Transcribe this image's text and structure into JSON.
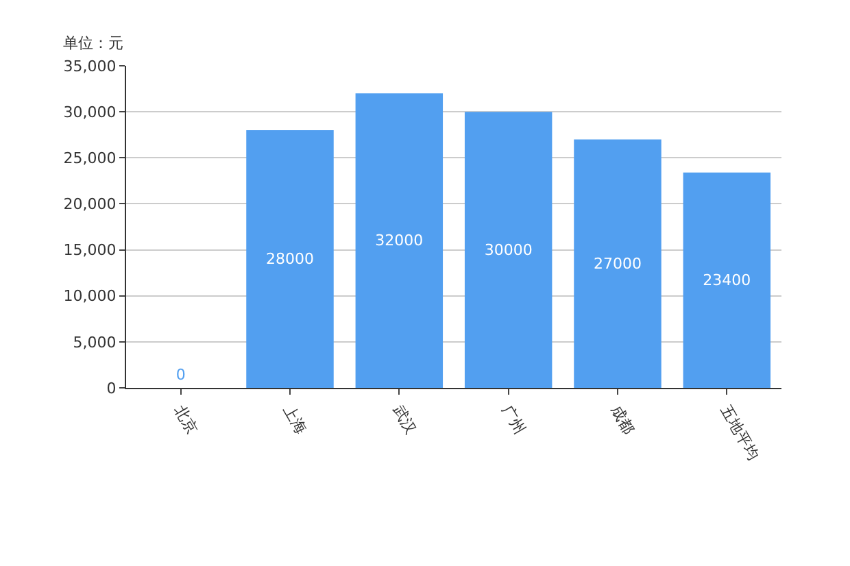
{
  "chart_data": {
    "type": "bar",
    "ylabel": "单位：元",
    "categories": [
      "北京",
      "上海",
      "武汉",
      "广州",
      "成都",
      "五地平均"
    ],
    "series": [
      {
        "color": "#529ff0",
        "values": [
          0,
          28000,
          32000,
          30000,
          27000,
          23400
        ]
      }
    ],
    "ylim": [
      0,
      35000
    ],
    "yticks": [
      {
        "value": 0,
        "label": "0"
      },
      {
        "value": 5000,
        "label": "5,000"
      },
      {
        "value": 10000,
        "label": "10,000"
      },
      {
        "value": 15000,
        "label": "15,000"
      },
      {
        "value": 20000,
        "label": "20,000"
      },
      {
        "value": 25000,
        "label": "25,000"
      },
      {
        "value": 30000,
        "label": "30,000"
      },
      {
        "value": 35000,
        "label": "35,000"
      }
    ],
    "grid": "y",
    "data_labels": true
  }
}
